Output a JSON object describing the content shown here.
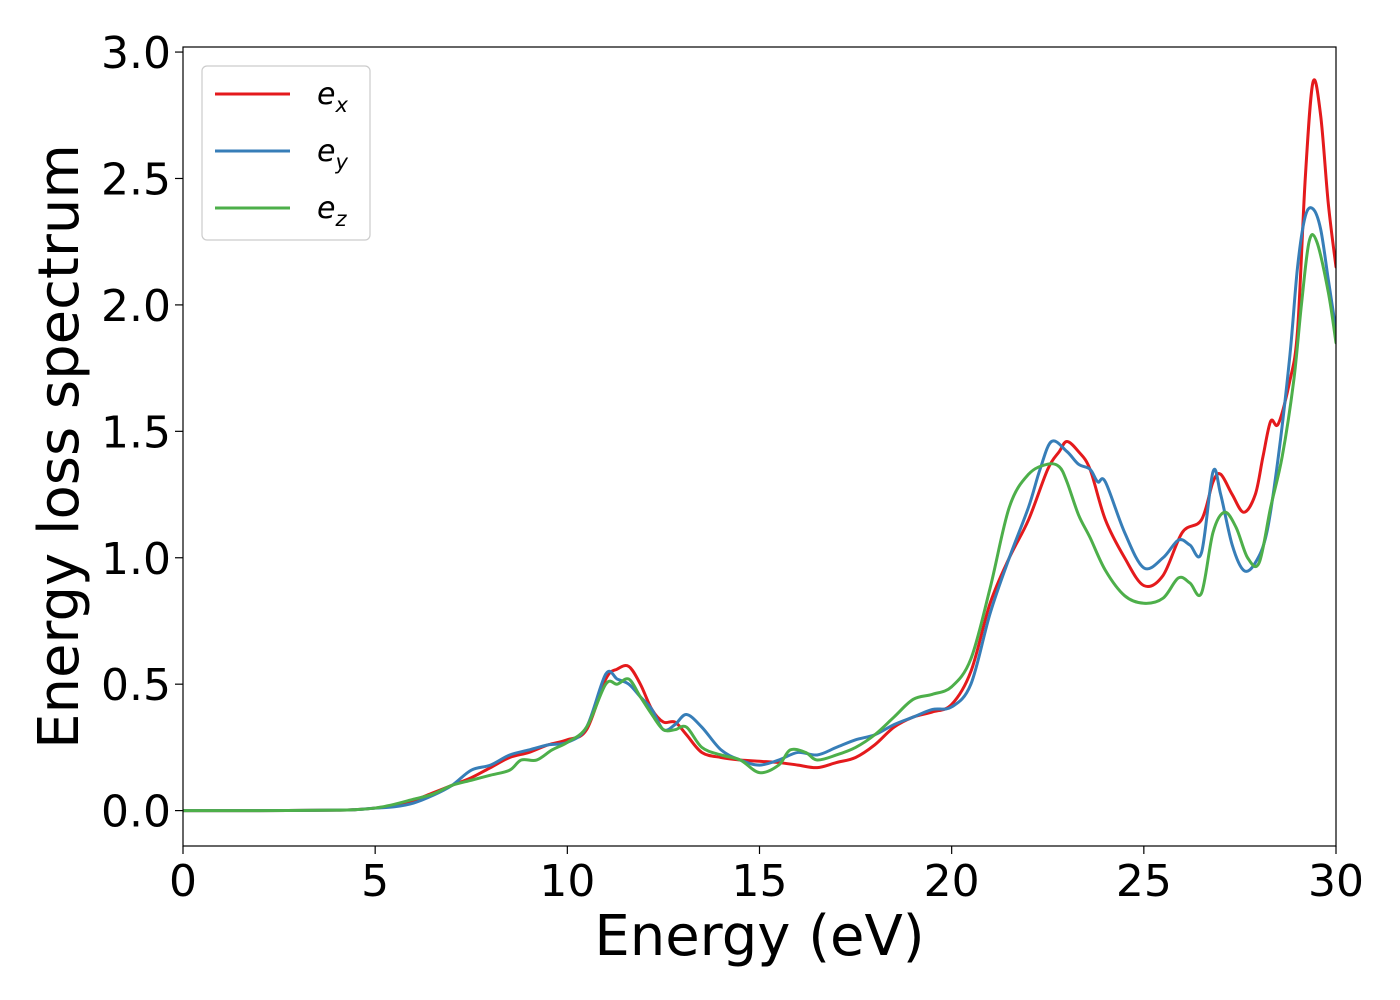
{
  "chart_data": {
    "type": "line",
    "xlabel": "Energy (eV)",
    "ylabel": "Energy loss spectrum",
    "xlim": [
      0,
      30
    ],
    "ylim": [
      -0.14,
      3.02
    ],
    "xticks": [
      "0",
      "5",
      "10",
      "15",
      "20",
      "25",
      "30"
    ],
    "yticks": [
      "0.0",
      "0.5",
      "1.0",
      "1.5",
      "2.0",
      "2.5",
      "3.0"
    ],
    "grid": false,
    "legend_position": "top-left",
    "series": [
      {
        "name": "e_x",
        "label_base": "e",
        "label_sub": "x",
        "color": "#e41a1c",
        "x": [
          0,
          2,
          4,
          4.5,
          5,
          5.5,
          6,
          6.5,
          7,
          7.5,
          8,
          8.5,
          9,
          9.5,
          10,
          10.5,
          11,
          11.3,
          11.6,
          11.9,
          12.2,
          12.5,
          12.8,
          13.1,
          13.5,
          14,
          14.5,
          15,
          15.5,
          16,
          16.5,
          17,
          17.5,
          18,
          18.5,
          19,
          19.5,
          20,
          20.5,
          21,
          21.5,
          22,
          22.5,
          22.8,
          23,
          23.3,
          23.6,
          24,
          24.5,
          25,
          25.5,
          26,
          26.5,
          26.8,
          27,
          27.3,
          27.6,
          27.9,
          28.1,
          28.3,
          28.5,
          28.8,
          29,
          29.2,
          29.4,
          29.6,
          29.8,
          30
        ],
        "y": [
          0.0,
          0.0,
          0.002,
          0.004,
          0.01,
          0.02,
          0.04,
          0.07,
          0.1,
          0.13,
          0.17,
          0.21,
          0.23,
          0.26,
          0.28,
          0.32,
          0.52,
          0.56,
          0.57,
          0.5,
          0.4,
          0.35,
          0.35,
          0.3,
          0.23,
          0.21,
          0.2,
          0.195,
          0.19,
          0.18,
          0.17,
          0.19,
          0.21,
          0.26,
          0.33,
          0.37,
          0.39,
          0.42,
          0.55,
          0.82,
          1.0,
          1.15,
          1.35,
          1.42,
          1.46,
          1.42,
          1.35,
          1.15,
          1.0,
          0.89,
          0.93,
          1.1,
          1.15,
          1.3,
          1.33,
          1.25,
          1.18,
          1.25,
          1.4,
          1.54,
          1.53,
          1.7,
          1.9,
          2.5,
          2.88,
          2.75,
          2.4,
          2.15
        ]
      },
      {
        "name": "e_y",
        "label_base": "e",
        "label_sub": "y",
        "color": "#377eb8",
        "x": [
          0,
          2,
          4,
          4.5,
          5,
          5.5,
          6,
          6.5,
          7,
          7.5,
          8,
          8.5,
          9,
          9.5,
          10,
          10.5,
          11,
          11.3,
          11.6,
          11.9,
          12.2,
          12.5,
          12.8,
          13.1,
          13.5,
          14,
          14.5,
          15,
          15.5,
          16,
          16.5,
          17,
          17.5,
          18,
          18.5,
          19,
          19.5,
          20,
          20.5,
          21,
          21.5,
          22,
          22.3,
          22.6,
          23,
          23.3,
          23.6,
          23.8,
          24,
          24.5,
          25,
          25.5,
          25.9,
          26.2,
          26.5,
          26.8,
          27,
          27.3,
          27.6,
          27.9,
          28.2,
          28.5,
          28.8,
          29,
          29.2,
          29.4,
          29.6,
          29.8,
          30
        ],
        "y": [
          0.0,
          0.0,
          0.002,
          0.004,
          0.01,
          0.015,
          0.03,
          0.06,
          0.1,
          0.16,
          0.18,
          0.22,
          0.24,
          0.26,
          0.27,
          0.33,
          0.54,
          0.52,
          0.5,
          0.45,
          0.4,
          0.32,
          0.34,
          0.38,
          0.33,
          0.24,
          0.2,
          0.18,
          0.2,
          0.23,
          0.22,
          0.25,
          0.28,
          0.3,
          0.34,
          0.37,
          0.4,
          0.41,
          0.5,
          0.78,
          1.0,
          1.2,
          1.35,
          1.46,
          1.42,
          1.37,
          1.35,
          1.3,
          1.3,
          1.1,
          0.96,
          1.0,
          1.07,
          1.05,
          1.02,
          1.34,
          1.25,
          1.05,
          0.95,
          0.98,
          1.1,
          1.4,
          1.8,
          2.15,
          2.35,
          2.38,
          2.3,
          2.1,
          1.9
        ]
      },
      {
        "name": "e_z",
        "label_base": "e",
        "label_sub": "z",
        "color": "#4daf4a",
        "x": [
          0,
          2,
          4,
          4.5,
          5,
          5.5,
          6,
          6.5,
          7,
          7.5,
          8,
          8.5,
          8.8,
          9.2,
          9.6,
          10,
          10.5,
          11,
          11.3,
          11.6,
          11.9,
          12.2,
          12.5,
          12.8,
          13.1,
          13.5,
          14,
          14.5,
          15,
          15.5,
          15.8,
          16.2,
          16.5,
          17,
          17.5,
          18,
          18.5,
          19,
          19.5,
          20,
          20.5,
          21,
          21.5,
          22,
          22.5,
          22.8,
          23,
          23.3,
          23.6,
          24,
          24.5,
          25,
          25.5,
          25.9,
          26.2,
          26.5,
          26.8,
          27.1,
          27.4,
          27.7,
          28,
          28.3,
          28.6,
          28.9,
          29.1,
          29.3,
          29.5,
          29.8,
          30
        ],
        "y": [
          0.0,
          0.0,
          0.002,
          0.004,
          0.01,
          0.025,
          0.045,
          0.065,
          0.1,
          0.12,
          0.14,
          0.16,
          0.2,
          0.2,
          0.24,
          0.27,
          0.33,
          0.5,
          0.5,
          0.52,
          0.45,
          0.38,
          0.32,
          0.32,
          0.33,
          0.25,
          0.22,
          0.2,
          0.15,
          0.18,
          0.24,
          0.23,
          0.2,
          0.22,
          0.25,
          0.3,
          0.37,
          0.44,
          0.46,
          0.49,
          0.6,
          0.88,
          1.2,
          1.33,
          1.37,
          1.36,
          1.3,
          1.17,
          1.08,
          0.95,
          0.85,
          0.82,
          0.84,
          0.92,
          0.9,
          0.86,
          1.1,
          1.18,
          1.12,
          1.0,
          0.98,
          1.2,
          1.4,
          1.7,
          2.0,
          2.25,
          2.25,
          2.05,
          1.85
        ]
      }
    ]
  }
}
